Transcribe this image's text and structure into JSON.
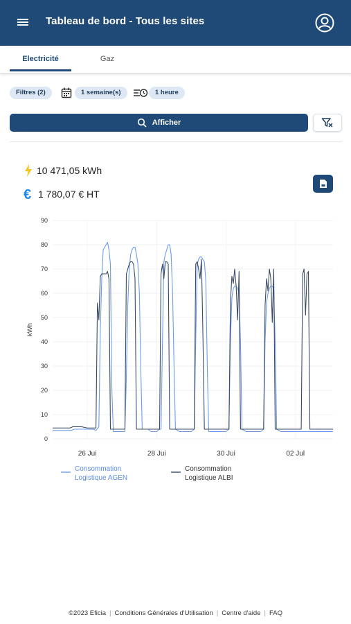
{
  "header": {
    "title": "Tableau de bord - Tous les sites",
    "bg_color": "#1f4a78"
  },
  "tabs": [
    {
      "label": "Electricité",
      "active": true
    },
    {
      "label": "Gaz",
      "active": false
    }
  ],
  "filters": {
    "filters_label": "Filtres (2)",
    "period_label": "1 semaine(s)",
    "step_label": "1 heure"
  },
  "actions": {
    "show_label": "Afficher"
  },
  "kpis": {
    "energy": "10 471,05 kWh",
    "cost": "1 780,07 € HT"
  },
  "icons": [
    "menu-icon",
    "account-icon",
    "calendar-icon",
    "step-icon",
    "search-icon",
    "filter-clear-icon",
    "bolt-icon",
    "euro-icon",
    "file-export-icon"
  ],
  "chart_data": {
    "type": "line",
    "ylabel": "kWh",
    "ylim": [
      0,
      90
    ],
    "yticks": [
      0,
      10,
      20,
      30,
      40,
      50,
      60,
      70,
      80,
      90
    ],
    "x_unit": "hours since 25 Jui 00:00",
    "xlim": [
      0,
      194
    ],
    "xticks": [
      {
        "label": "26 Jui",
        "x": 24
      },
      {
        "label": "28 Jui",
        "x": 72
      },
      {
        "label": "30 Jui",
        "x": 120
      },
      {
        "label": "02 Jul",
        "x": 168
      }
    ],
    "grid": true,
    "legend_position": "bottom",
    "series": [
      {
        "name": "Consommation Logistique AGEN",
        "color": "#6b9be6",
        "points": [
          [
            0,
            3.5
          ],
          [
            13,
            3.5
          ],
          [
            15,
            4
          ],
          [
            28,
            4
          ],
          [
            30,
            3.5
          ],
          [
            32,
            5
          ],
          [
            33,
            45
          ],
          [
            34,
            66
          ],
          [
            35,
            78
          ],
          [
            36,
            79
          ],
          [
            37,
            80
          ],
          [
            38,
            81
          ],
          [
            39,
            78
          ],
          [
            40,
            72
          ],
          [
            41,
            20
          ],
          [
            42,
            3
          ],
          [
            48,
            3
          ],
          [
            50,
            3
          ],
          [
            51,
            25
          ],
          [
            52,
            55
          ],
          [
            53,
            70
          ],
          [
            54,
            76
          ],
          [
            55,
            78
          ],
          [
            56,
            79
          ],
          [
            57,
            79
          ],
          [
            58,
            76
          ],
          [
            59,
            72
          ],
          [
            60,
            60
          ],
          [
            61,
            30
          ],
          [
            62,
            4
          ],
          [
            66,
            4
          ],
          [
            68,
            3
          ],
          [
            70,
            3
          ],
          [
            72,
            3
          ],
          [
            74,
            4
          ],
          [
            75,
            4
          ],
          [
            76,
            40
          ],
          [
            77,
            73
          ],
          [
            78,
            76
          ],
          [
            79,
            78
          ],
          [
            80,
            80
          ],
          [
            81,
            80
          ],
          [
            82,
            76
          ],
          [
            83,
            60
          ],
          [
            84,
            30
          ],
          [
            85,
            4
          ],
          [
            88,
            3
          ],
          [
            96,
            3
          ],
          [
            98,
            4
          ],
          [
            99,
            40
          ],
          [
            100,
            72
          ],
          [
            101,
            74
          ],
          [
            102,
            75
          ],
          [
            103,
            75
          ],
          [
            104,
            74
          ],
          [
            105,
            73
          ],
          [
            106,
            65
          ],
          [
            107,
            30
          ],
          [
            108,
            3
          ],
          [
            112,
            3
          ],
          [
            120,
            3
          ],
          [
            122,
            4
          ],
          [
            123,
            40
          ],
          [
            124,
            58
          ],
          [
            125,
            62
          ],
          [
            126,
            63
          ],
          [
            127,
            63
          ],
          [
            128,
            62
          ],
          [
            129,
            60
          ],
          [
            130,
            40
          ],
          [
            131,
            4
          ],
          [
            134,
            3
          ],
          [
            144,
            3
          ],
          [
            146,
            4
          ],
          [
            147,
            40
          ],
          [
            148,
            56
          ],
          [
            149,
            60
          ],
          [
            150,
            62
          ],
          [
            151,
            63
          ],
          [
            152,
            63
          ],
          [
            153,
            62
          ],
          [
            154,
            40
          ],
          [
            155,
            4
          ],
          [
            158,
            3
          ],
          [
            168,
            3
          ],
          [
            170,
            3
          ],
          [
            172,
            3
          ],
          [
            174,
            3
          ],
          [
            178,
            3
          ],
          [
            180,
            3
          ],
          [
            183,
            3
          ],
          [
            186,
            3
          ],
          [
            190,
            3
          ],
          [
            194,
            3
          ]
        ]
      },
      {
        "name": "Consommation Logistique ALBI",
        "color": "#3a4a63",
        "points": [
          [
            0,
            4.5
          ],
          [
            12,
            4.5
          ],
          [
            14,
            5
          ],
          [
            20,
            5
          ],
          [
            24,
            4.5
          ],
          [
            28,
            4.5
          ],
          [
            30,
            4.5
          ],
          [
            31,
            56
          ],
          [
            32,
            49
          ],
          [
            33,
            67
          ],
          [
            34,
            68
          ],
          [
            35,
            68
          ],
          [
            36,
            68
          ],
          [
            37,
            68
          ],
          [
            38,
            69
          ],
          [
            39,
            66
          ],
          [
            40,
            4
          ],
          [
            48,
            4
          ],
          [
            50,
            4
          ],
          [
            51,
            68
          ],
          [
            52,
            70
          ],
          [
            53,
            72
          ],
          [
            54,
            73
          ],
          [
            55,
            73
          ],
          [
            56,
            72
          ],
          [
            57,
            66
          ],
          [
            58,
            4
          ],
          [
            62,
            4
          ],
          [
            68,
            4
          ],
          [
            72,
            4
          ],
          [
            74,
            4
          ],
          [
            75,
            68
          ],
          [
            76,
            72
          ],
          [
            77,
            66
          ],
          [
            78,
            73
          ],
          [
            79,
            73
          ],
          [
            80,
            72
          ],
          [
            81,
            4
          ],
          [
            84,
            4
          ],
          [
            92,
            4
          ],
          [
            96,
            4
          ],
          [
            98,
            4
          ],
          [
            99,
            72
          ],
          [
            100,
            73
          ],
          [
            101,
            70
          ],
          [
            102,
            66
          ],
          [
            103,
            74
          ],
          [
            104,
            43
          ],
          [
            105,
            4
          ],
          [
            112,
            4
          ],
          [
            120,
            4
          ],
          [
            122,
            4
          ],
          [
            123,
            56
          ],
          [
            124,
            67
          ],
          [
            125,
            64
          ],
          [
            126,
            70
          ],
          [
            127,
            63
          ],
          [
            128,
            49
          ],
          [
            129,
            69
          ],
          [
            130,
            4
          ],
          [
            136,
            4
          ],
          [
            144,
            4
          ],
          [
            146,
            4
          ],
          [
            147,
            55
          ],
          [
            148,
            66
          ],
          [
            149,
            61
          ],
          [
            150,
            70
          ],
          [
            151,
            66
          ],
          [
            152,
            48
          ],
          [
            153,
            70
          ],
          [
            154,
            4
          ],
          [
            158,
            4
          ],
          [
            168,
            4
          ],
          [
            170,
            4
          ],
          [
            172,
            4
          ],
          [
            173,
            68
          ],
          [
            174,
            70
          ],
          [
            175,
            51
          ],
          [
            176,
            68
          ],
          [
            177,
            69
          ],
          [
            178,
            4
          ],
          [
            186,
            4
          ],
          [
            190,
            4
          ],
          [
            194,
            4
          ]
        ]
      }
    ]
  },
  "footer": {
    "copyright": "©2023 Eficia",
    "cgu": "Conditions Générales d'Utilisation",
    "help": "Centre d'aide",
    "faq": "FAQ"
  }
}
